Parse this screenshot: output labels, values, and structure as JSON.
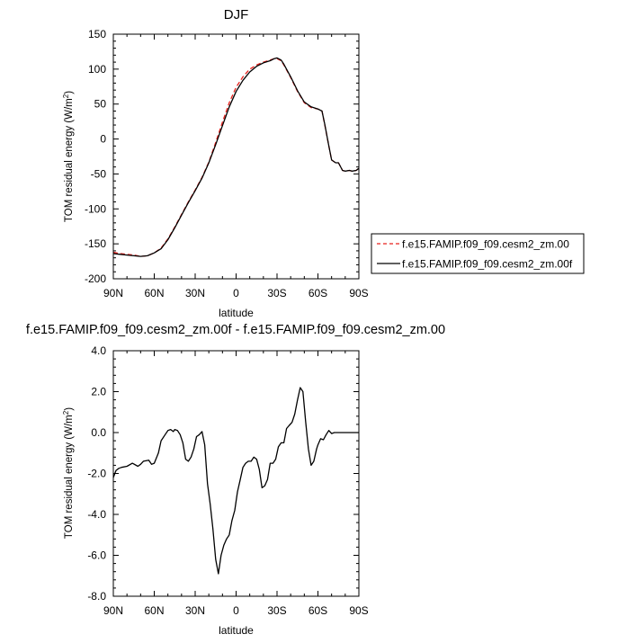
{
  "title_top": "DJF",
  "title_bottom": "f.e15.FAMIP.f09_f09.cesm2_zm.00f - f.e15.FAMIP.f09_f09.cesm2_zm.00",
  "chart_data": [
    {
      "type": "line",
      "title": "DJF",
      "xlabel": "latitude",
      "ylabel": "TOM residual energy (W/m²)",
      "ylabel_main": "TOM residual energy (W/m",
      "ylabel_sup": "2",
      "ylabel_close": ")",
      "xlim": [
        90,
        -90
      ],
      "ylim": [
        -200,
        150
      ],
      "xticks": [
        90,
        60,
        30,
        0,
        -30,
        -60,
        -90
      ],
      "xtick_labels": [
        "90N",
        "60N",
        "30N",
        "0",
        "30S",
        "60S",
        "90S"
      ],
      "yticks": [
        -200,
        -150,
        -100,
        -50,
        0,
        50,
        100,
        150
      ],
      "ytick_labels": [
        "-200",
        "-150",
        "-100",
        "-50",
        "0",
        "50",
        "100",
        "150"
      ],
      "legend_position": "right",
      "series": [
        {
          "name": "f.e15.FAMIP.f09_f09.cesm2_zm.00",
          "color": "#e8201c",
          "dash": "dashed",
          "x": [
            90,
            85,
            80,
            75,
            70,
            65,
            60,
            55,
            50,
            45,
            40,
            35,
            30,
            25,
            20,
            15,
            10,
            5,
            0,
            -5,
            -10,
            -15,
            -20,
            -25,
            -28,
            -30,
            -33,
            -35,
            -40,
            -45,
            -50,
            -55,
            -60,
            -63,
            -65,
            -68,
            -70,
            -73,
            -75,
            -78,
            -80,
            -83,
            -85,
            -88,
            -90
          ],
          "y": [
            -162,
            -164,
            -165,
            -166,
            -168,
            -167,
            -163,
            -156,
            -143,
            -126,
            -108,
            -90,
            -73,
            -55,
            -33,
            -5,
            24,
            52,
            74,
            89,
            100,
            106,
            110,
            113,
            115,
            115,
            112,
            106,
            88,
            68,
            52,
            45,
            43,
            40,
            20,
            -10,
            -30,
            -34,
            -34,
            -45,
            -46,
            -45,
            -46,
            -45,
            -42
          ]
        },
        {
          "name": "f.e15.FAMIP.f09_f09.cesm2_zm.00f",
          "color": "#000000",
          "dash": "solid",
          "x": [
            90,
            85,
            80,
            75,
            70,
            65,
            60,
            55,
            50,
            45,
            40,
            35,
            30,
            25,
            20,
            15,
            10,
            5,
            0,
            -5,
            -10,
            -15,
            -20,
            -25,
            -28,
            -30,
            -33,
            -35,
            -40,
            -45,
            -50,
            -55,
            -60,
            -63,
            -65,
            -68,
            -70,
            -73,
            -75,
            -78,
            -80,
            -83,
            -85,
            -88,
            -90
          ],
          "y": [
            -164,
            -165,
            -166,
            -167,
            -168,
            -167,
            -163,
            -157,
            -144,
            -127,
            -109,
            -91,
            -74,
            -56,
            -34,
            -8,
            19,
            46,
            68,
            84,
            96,
            104,
            109,
            112,
            115,
            116,
            113,
            107,
            89,
            69,
            53,
            46,
            43,
            40,
            21,
            -10,
            -30,
            -34,
            -34,
            -45,
            -46,
            -45,
            -46,
            -45,
            -42
          ]
        }
      ]
    },
    {
      "type": "line",
      "title": "f.e15.FAMIP.f09_f09.cesm2_zm.00f - f.e15.FAMIP.f09_f09.cesm2_zm.00",
      "xlabel": "latitude",
      "ylabel": "TOM residual energy (W/m²)",
      "ylabel_main": "TOM residual energy (W/m",
      "ylabel_sup": "2",
      "ylabel_close": ")",
      "xlim": [
        90,
        -90
      ],
      "ylim": [
        -8,
        4
      ],
      "xticks": [
        90,
        60,
        30,
        0,
        -30,
        -60,
        -90
      ],
      "xtick_labels": [
        "90N",
        "60N",
        "30N",
        "0",
        "30S",
        "60S",
        "90S"
      ],
      "yticks": [
        -8,
        -6,
        -4,
        -2,
        0,
        2,
        4
      ],
      "ytick_labels": [
        "-8.0",
        "-6.0",
        "-4.0",
        "-2.0",
        "0.0",
        "2.0",
        "4.0"
      ],
      "series": [
        {
          "color": "#000000",
          "dash": "solid",
          "x": [
            90,
            88,
            86,
            84,
            80,
            76,
            72,
            70,
            68,
            64,
            62,
            60,
            57,
            55,
            52,
            50,
            48,
            46,
            45,
            43,
            41,
            39,
            37,
            35,
            33,
            31,
            29,
            27,
            25,
            23,
            21,
            19,
            17,
            15,
            13,
            11,
            9,
            7,
            5,
            3,
            1,
            -1,
            -3,
            -5,
            -7,
            -9,
            -11,
            -13,
            -15,
            -17,
            -19,
            -21,
            -23,
            -25,
            -27,
            -29,
            -31,
            -33,
            -35,
            -37,
            -39,
            -41,
            -43,
            -45,
            -47,
            -49,
            -51,
            -53,
            -55,
            -57,
            -59,
            -60,
            -62,
            -64,
            -66,
            -68,
            -70,
            -72,
            -74,
            -76,
            -78,
            -80,
            -82,
            -84,
            -86,
            -88,
            -90
          ],
          "y": [
            -2.2,
            -1.85,
            -1.75,
            -1.7,
            -1.65,
            -1.5,
            -1.65,
            -1.55,
            -1.4,
            -1.35,
            -1.55,
            -1.5,
            -1.0,
            -0.4,
            -0.1,
            0.1,
            0.15,
            0.05,
            0.15,
            0.1,
            -0.1,
            -0.5,
            -1.3,
            -1.4,
            -1.2,
            -0.8,
            -0.2,
            -0.1,
            0.05,
            -0.6,
            -2.5,
            -3.5,
            -4.7,
            -6.2,
            -6.9,
            -6.0,
            -5.5,
            -5.2,
            -5.0,
            -4.3,
            -3.8,
            -2.9,
            -2.3,
            -1.7,
            -1.5,
            -1.4,
            -1.4,
            -1.2,
            -1.3,
            -1.8,
            -2.7,
            -2.6,
            -2.3,
            -1.5,
            -1.5,
            -1.3,
            -0.7,
            -0.5,
            -0.5,
            0.2,
            0.35,
            0.5,
            0.9,
            1.6,
            2.2,
            2.0,
            0.5,
            -0.8,
            -1.6,
            -1.4,
            -0.8,
            -0.6,
            -0.3,
            -0.35,
            -0.1,
            0.1,
            -0.05,
            0.0,
            0.0,
            0.0,
            0.0,
            0.0,
            0.0,
            0.0,
            0.0,
            0.0,
            0.0
          ]
        }
      ]
    }
  ]
}
